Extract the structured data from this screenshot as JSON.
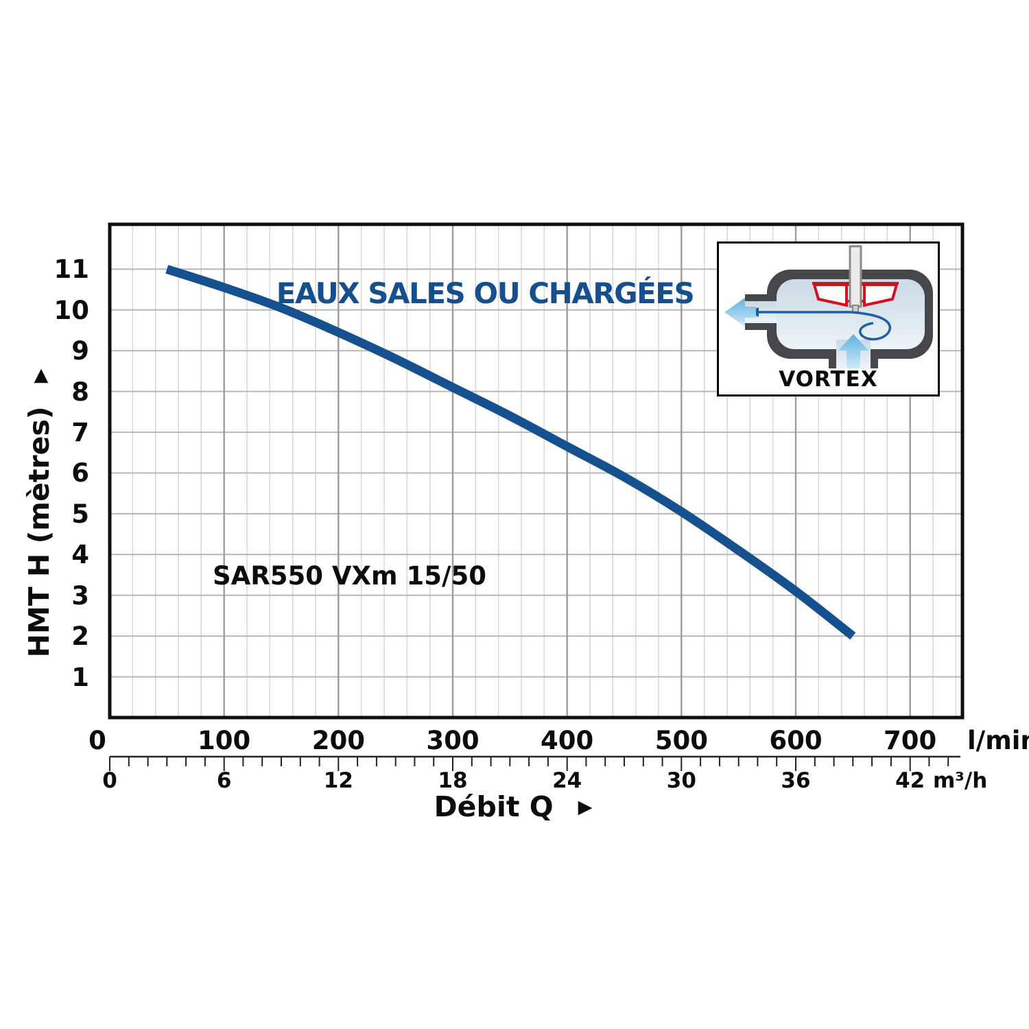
{
  "title": "EAUX SALES OU CHARGÉES",
  "model_label": "SAR550 VXm 15/50",
  "inset": {
    "label": "VORTEX"
  },
  "axes": {
    "y_title": "HMT H (mètres)",
    "y_ticks": [
      1,
      2,
      3,
      4,
      5,
      6,
      7,
      8,
      9,
      10,
      11
    ],
    "x_ticks": [
      0,
      100,
      200,
      300,
      400,
      500,
      600,
      700
    ],
    "x_unit": "l/min",
    "x2_ticks": [
      0,
      6,
      12,
      18,
      24,
      30,
      36,
      42
    ],
    "x2_unit": "m³/h",
    "x_axis_label": "Débit Q",
    "arrow_glyph": "▶"
  },
  "colors": {
    "curve": "#15518f",
    "accent_blue": "#164f8e",
    "grid_minor": "#d7d7d7",
    "grid_horizontal": "#b7b7b7",
    "grid_major": "#9d9d9d",
    "frame": "#0f0f0f",
    "ruler": "#222222",
    "inset_red": "#d40f20",
    "inset_body_gray": "#45474b",
    "inset_light_blue": "#5fb1e0",
    "inset_swirl_blue": "#1d5fa8"
  },
  "chart_data": {
    "type": "line",
    "title": "EAUX SALES OU CHARGÉES",
    "xlabel": "Débit Q (l/min)",
    "ylabel": "HMT H (mètres)",
    "xlim": [
      0,
      746
    ],
    "ylim": [
      0,
      12.1
    ],
    "x_unit_primary": "l/min",
    "x_unit_secondary": "m³/h",
    "secondary_axis_relation": "1 m³/h = 16.667 l/min",
    "grid": {
      "x_minor_step": 20,
      "x_major_step": 100,
      "y_step": 1,
      "x2_tick_step": 1
    },
    "legend_position": "none",
    "series": [
      {
        "name": "SAR550 VXm 15/50",
        "x": [
          50,
          100,
          150,
          200,
          250,
          300,
          350,
          400,
          450,
          500,
          550,
          600,
          650
        ],
        "y": [
          11.0,
          10.55,
          10.05,
          9.45,
          8.8,
          8.1,
          7.4,
          6.65,
          5.9,
          5.05,
          4.1,
          3.1,
          2.0
        ]
      }
    ]
  }
}
